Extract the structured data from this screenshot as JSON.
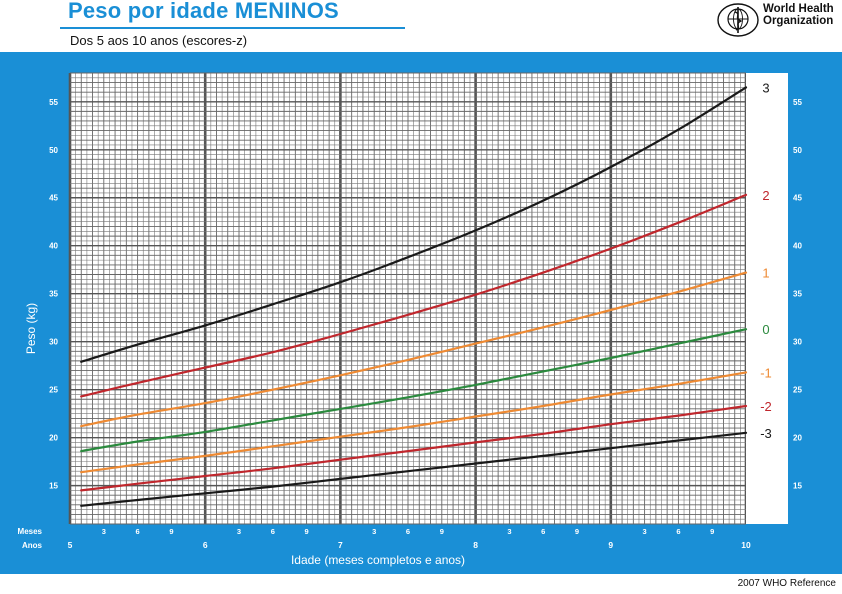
{
  "header": {
    "title": "Peso por idade MENINOS",
    "subtitle": "Dos 5 aos 10 anos (escores-z)",
    "who_name_line1": "World Health",
    "who_name_line2": "Organization"
  },
  "footer": {
    "reference": "2007 WHO Reference"
  },
  "colors": {
    "panel": "#1a8fd6",
    "z3": "#1a1a1a",
    "z2": "#c0272d",
    "z1": "#ee8a33",
    "z0": "#2b8a3e"
  },
  "chart_data": {
    "type": "line",
    "title": "Peso por idade MENINOS",
    "subtitle": "Dos 5 aos 10 anos (escores-z)",
    "xlabel": "Idade (meses completos e anos)",
    "ylabel": "Peso (kg)",
    "x_unit": "years",
    "xlim": [
      5,
      10
    ],
    "ylim": [
      11,
      58
    ],
    "yticks": [
      15,
      20,
      25,
      30,
      35,
      40,
      45,
      50,
      55
    ],
    "year_labels": [
      "5",
      "6",
      "7",
      "8",
      "9",
      "10"
    ],
    "month_labels": [
      "3",
      "6",
      "9"
    ],
    "month_row_label": "Meses",
    "year_row_label": "Anos",
    "grid": true,
    "x": [
      5.083,
      5.5,
      6,
      6.5,
      7,
      7.5,
      8,
      8.5,
      9,
      9.5,
      10
    ],
    "series": [
      {
        "name": "3",
        "color": "#1a1a1a",
        "values": [
          27.9,
          29.7,
          31.7,
          33.9,
          36.2,
          38.8,
          41.6,
          44.7,
          48.2,
          52.1,
          56.5
        ]
      },
      {
        "name": "2",
        "color": "#c0272d",
        "values": [
          24.3,
          25.7,
          27.3,
          28.9,
          30.8,
          32.8,
          34.9,
          37.2,
          39.7,
          42.4,
          45.3
        ]
      },
      {
        "name": "1",
        "color": "#ee8a33",
        "values": [
          21.2,
          22.4,
          23.6,
          25.0,
          26.5,
          28.1,
          29.8,
          31.5,
          33.3,
          35.2,
          37.2
        ]
      },
      {
        "name": "0",
        "color": "#2b8a3e",
        "values": [
          18.6,
          19.6,
          20.6,
          21.8,
          23.0,
          24.2,
          25.5,
          26.9,
          28.3,
          29.8,
          31.3
        ]
      },
      {
        "name": "-1",
        "color": "#ee8a33",
        "values": [
          16.4,
          17.2,
          18.1,
          19.1,
          20.1,
          21.1,
          22.2,
          23.3,
          24.5,
          25.6,
          26.8
        ]
      },
      {
        "name": "-2",
        "color": "#c0272d",
        "values": [
          14.5,
          15.2,
          16.0,
          16.8,
          17.7,
          18.6,
          19.5,
          20.4,
          21.4,
          22.3,
          23.3
        ]
      },
      {
        "name": "-3",
        "color": "#1a1a1a",
        "values": [
          12.9,
          13.5,
          14.2,
          14.9,
          15.7,
          16.5,
          17.3,
          18.1,
          18.9,
          19.7,
          20.5
        ]
      }
    ]
  }
}
